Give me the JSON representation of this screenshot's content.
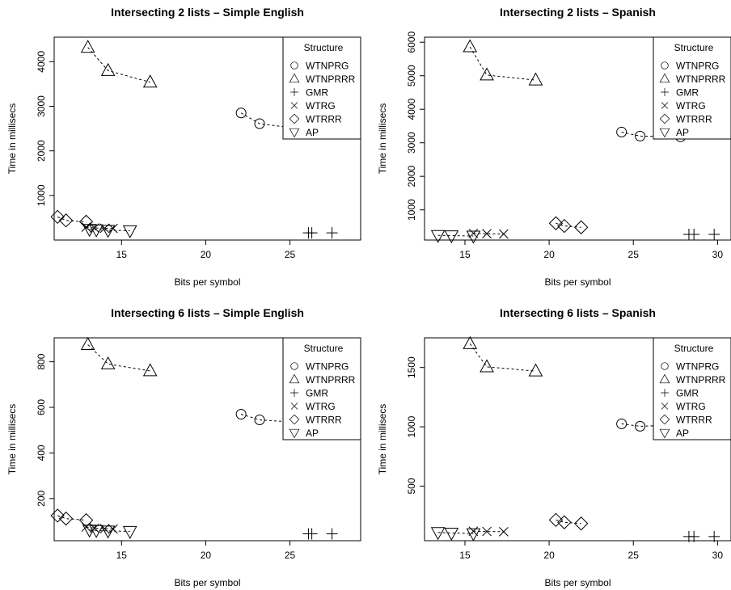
{
  "chart_data": [
    {
      "type": "scatter",
      "title": "Intersecting 2 lists – Simple English",
      "xlabel": "Bits per symbol",
      "ylabel": "Time in millisecs",
      "xlim": [
        11,
        29.2
      ],
      "ylim": [
        0,
        4550
      ],
      "xticks": [
        15,
        20,
        25
      ],
      "yticks": [
        1000,
        2000,
        3000,
        4000
      ],
      "legend": {
        "title": "Structure",
        "position": "top-right"
      },
      "series": [
        {
          "name": "WTNPRG",
          "marker": "circle",
          "connected": true,
          "x": [
            22.1,
            23.2,
            25.3
          ],
          "y": [
            2850,
            2610,
            2510
          ]
        },
        {
          "name": "WTNPRRR",
          "marker": "triangle",
          "connected": true,
          "x": [
            13.0,
            14.2,
            16.7
          ],
          "y": [
            4320,
            3800,
            3540
          ]
        },
        {
          "name": "GMR",
          "marker": "plus",
          "connected": false,
          "x": [
            26.1,
            26.3,
            27.5
          ],
          "y": [
            160,
            160,
            160
          ]
        },
        {
          "name": "WTRG",
          "marker": "cross",
          "connected": true,
          "x": [
            12.9,
            13.4,
            14.0,
            14.5
          ],
          "y": [
            290,
            270,
            265,
            260
          ]
        },
        {
          "name": "WTRRR",
          "marker": "diamond",
          "connected": true,
          "x": [
            11.2,
            11.7,
            12.9
          ],
          "y": [
            520,
            440,
            410
          ]
        },
        {
          "name": "AP",
          "marker": "triangle-down",
          "connected": true,
          "x": [
            13.1,
            13.5,
            14.2,
            15.5
          ],
          "y": [
            240,
            230,
            220,
            210
          ]
        }
      ]
    },
    {
      "type": "scatter",
      "title": "Intersecting 2 lists – Spanish",
      "xlabel": "Bits per symbol",
      "ylabel": "Time in millisecs",
      "xlim": [
        12.6,
        30.8
      ],
      "ylim": [
        100,
        6150
      ],
      "xticks": [
        15,
        20,
        25,
        30
      ],
      "yticks": [
        1000,
        2000,
        3000,
        4000,
        5000,
        6000
      ],
      "legend": {
        "title": "Structure",
        "position": "top-right"
      },
      "series": [
        {
          "name": "WTNPRG",
          "marker": "circle",
          "connected": true,
          "x": [
            24.3,
            25.4,
            27.8
          ],
          "y": [
            3320,
            3200,
            3180
          ]
        },
        {
          "name": "WTNPRRR",
          "marker": "triangle",
          "connected": true,
          "x": [
            15.3,
            16.3,
            19.2
          ],
          "y": [
            5860,
            5020,
            4870
          ]
        },
        {
          "name": "GMR",
          "marker": "plus",
          "connected": false,
          "x": [
            28.3,
            28.6,
            29.8
          ],
          "y": [
            270,
            270,
            270
          ]
        },
        {
          "name": "WTRG",
          "marker": "cross",
          "connected": true,
          "x": [
            15.5,
            16.3,
            17.3
          ],
          "y": [
            300,
            290,
            280
          ]
        },
        {
          "name": "WTRRR",
          "marker": "diamond",
          "connected": true,
          "x": [
            20.4,
            20.9,
            21.9
          ],
          "y": [
            600,
            520,
            480
          ]
        },
        {
          "name": "AP",
          "marker": "triangle-down",
          "connected": true,
          "x": [
            13.4,
            14.2,
            15.5
          ],
          "y": [
            240,
            230,
            220
          ]
        }
      ]
    },
    {
      "type": "scatter",
      "title": "Intersecting 6 lists – Simple English",
      "xlabel": "Bits per symbol",
      "ylabel": "Time in millisecs",
      "xlim": [
        11,
        29.2
      ],
      "ylim": [
        15,
        905
      ],
      "xticks": [
        15,
        20,
        25
      ],
      "yticks": [
        200,
        400,
        600,
        800
      ],
      "legend": {
        "title": "Structure",
        "position": "top-right"
      },
      "series": [
        {
          "name": "WTNPRG",
          "marker": "circle",
          "connected": true,
          "x": [
            22.1,
            23.2,
            25.3
          ],
          "y": [
            570,
            545,
            535
          ]
        },
        {
          "name": "WTNPRRR",
          "marker": "triangle",
          "connected": true,
          "x": [
            13.0,
            14.2,
            16.7
          ],
          "y": [
            875,
            790,
            760
          ]
        },
        {
          "name": "GMR",
          "marker": "plus",
          "connected": false,
          "x": [
            26.1,
            26.3,
            27.5
          ],
          "y": [
            45,
            45,
            45
          ]
        },
        {
          "name": "WTRG",
          "marker": "cross",
          "connected": true,
          "x": [
            12.9,
            13.4,
            14.0,
            14.5
          ],
          "y": [
            75,
            70,
            68,
            66
          ]
        },
        {
          "name": "WTRRR",
          "marker": "diamond",
          "connected": true,
          "x": [
            11.2,
            11.7,
            12.9
          ],
          "y": [
            125,
            112,
            105
          ]
        },
        {
          "name": "AP",
          "marker": "triangle-down",
          "connected": true,
          "x": [
            13.1,
            13.5,
            14.2,
            15.5
          ],
          "y": [
            62,
            60,
            58,
            56
          ]
        }
      ]
    },
    {
      "type": "scatter",
      "title": "Intersecting 6 lists – Spanish",
      "xlabel": "Bits per symbol",
      "ylabel": "Time in millisecs",
      "xlim": [
        12.6,
        30.8
      ],
      "ylim": [
        40,
        1750
      ],
      "xticks": [
        15,
        20,
        25,
        30
      ],
      "yticks": [
        500,
        1000,
        1500
      ],
      "legend": {
        "title": "Structure",
        "position": "top-right"
      },
      "series": [
        {
          "name": "WTNPRG",
          "marker": "circle",
          "connected": true,
          "x": [
            24.3,
            25.4,
            27.8
          ],
          "y": [
            1025,
            1005,
            1015
          ]
        },
        {
          "name": "WTNPRRR",
          "marker": "triangle",
          "connected": true,
          "x": [
            15.3,
            16.3,
            19.2
          ],
          "y": [
            1700,
            1505,
            1470
          ]
        },
        {
          "name": "GMR",
          "marker": "plus",
          "connected": false,
          "x": [
            28.3,
            28.6,
            29.8
          ],
          "y": [
            75,
            75,
            75
          ]
        },
        {
          "name": "WTRG",
          "marker": "cross",
          "connected": true,
          "x": [
            15.5,
            16.3,
            17.3
          ],
          "y": [
            120,
            118,
            116
          ]
        },
        {
          "name": "WTRRR",
          "marker": "diamond",
          "connected": true,
          "x": [
            20.4,
            20.9,
            21.9
          ],
          "y": [
            215,
            195,
            185
          ]
        },
        {
          "name": "AP",
          "marker": "triangle-down",
          "connected": true,
          "x": [
            13.4,
            14.2,
            15.5
          ],
          "y": [
            110,
            105,
            100
          ]
        }
      ]
    }
  ]
}
